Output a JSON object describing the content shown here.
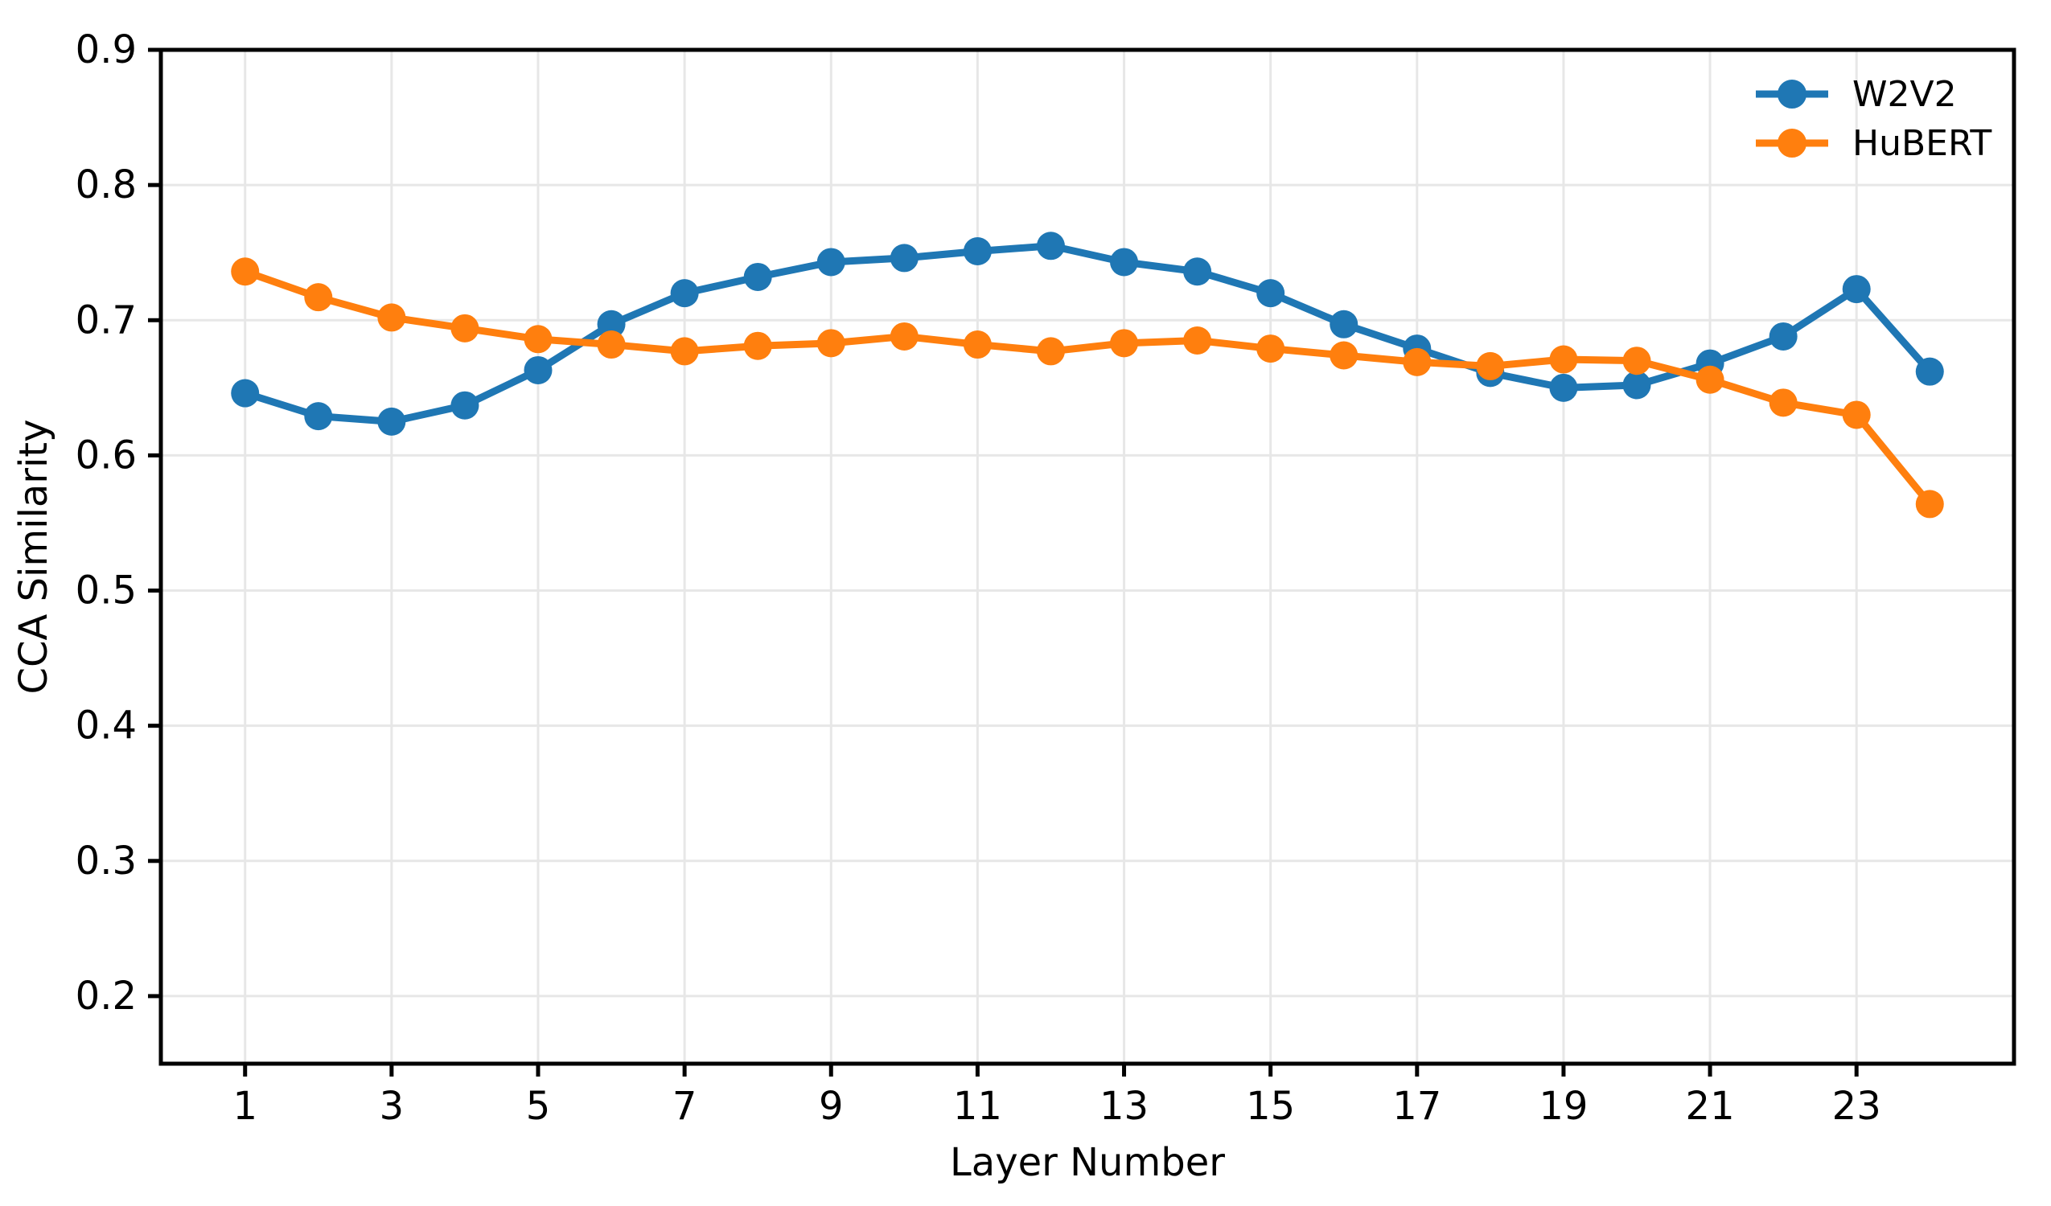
{
  "figure": {
    "background": "#ffffff",
    "plot_background": "#ffffff",
    "grid_color": "#e7e7e7",
    "spine_color": "#000000",
    "text_color": "#000000"
  },
  "chart_data": {
    "type": "line",
    "title": "",
    "xlabel": "Layer Number",
    "ylabel": "CCA Similarity",
    "x": [
      1,
      2,
      3,
      4,
      5,
      6,
      7,
      8,
      9,
      10,
      11,
      12,
      13,
      14,
      15,
      16,
      17,
      18,
      19,
      20,
      21,
      22,
      23,
      24
    ],
    "series": [
      {
        "name": "W2V2",
        "color": "#1f77b4",
        "marker": "circle",
        "values": [
          0.646,
          0.629,
          0.625,
          0.637,
          0.663,
          0.697,
          0.72,
          0.732,
          0.743,
          0.746,
          0.751,
          0.755,
          0.743,
          0.736,
          0.72,
          0.697,
          0.679,
          0.661,
          0.65,
          0.652,
          0.668,
          0.688,
          0.723,
          0.662
        ]
      },
      {
        "name": "HuBERT",
        "color": "#ff7f0e",
        "marker": "circle",
        "values": [
          0.736,
          0.717,
          0.702,
          0.694,
          0.686,
          0.682,
          0.677,
          0.681,
          0.683,
          0.688,
          0.682,
          0.677,
          0.683,
          0.685,
          0.679,
          0.674,
          0.669,
          0.666,
          0.671,
          0.67,
          0.656,
          0.639,
          0.63,
          0.564
        ]
      }
    ],
    "xlim": [
      -0.15,
      25.15
    ],
    "ylim": [
      0.15,
      0.9
    ],
    "xticks": [
      1,
      3,
      5,
      7,
      9,
      11,
      13,
      15,
      17,
      19,
      21,
      23
    ],
    "yticks": [
      0.2,
      0.3,
      0.4,
      0.5,
      0.6,
      0.7,
      0.8,
      0.9
    ],
    "grid": true,
    "legend_position": "upper right"
  }
}
